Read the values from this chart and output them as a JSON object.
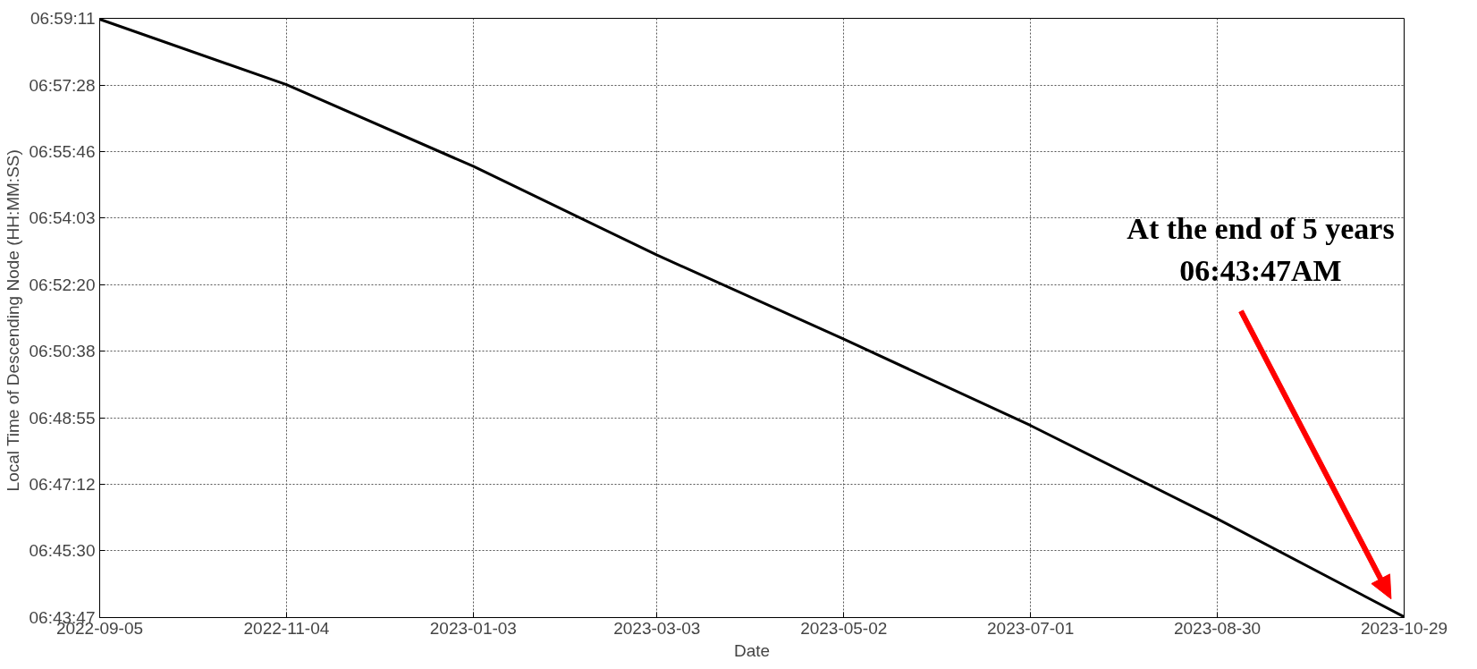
{
  "chart_data": {
    "type": "line",
    "xlabel": "Date",
    "ylabel": "Local Time of Descending Node  (HH:MM:SS)",
    "x": [
      "2022-09-05",
      "2022-11-04",
      "2023-01-03",
      "2023-03-03",
      "2023-05-02",
      "2023-07-01",
      "2023-08-30",
      "2023-10-29"
    ],
    "series": [
      {
        "color": "#000000",
        "values": [
          6.986,
          6.958,
          6.923,
          6.885,
          6.849,
          6.812,
          6.772,
          6.73
        ]
      }
    ],
    "xlim": [
      "2022-09-05",
      "2023-10-29"
    ],
    "xticks": [
      "2022-09-05",
      "2022-11-04",
      "2023-01-03",
      "2023-03-03",
      "2023-05-02",
      "2023-07-01",
      "2023-08-30",
      "2023-10-29"
    ],
    "ylim": [
      6.72972,
      6.98639
    ],
    "yticks": [
      {
        "value": 6.72972,
        "label": "06:43:47"
      },
      {
        "value": 6.75833,
        "label": "06:45:30"
      },
      {
        "value": 6.78667,
        "label": "06:47:12"
      },
      {
        "value": 6.81528,
        "label": "06:48:55"
      },
      {
        "value": 6.84389,
        "label": "06:50:38"
      },
      {
        "value": 6.87222,
        "label": "06:52:20"
      },
      {
        "value": 6.90083,
        "label": "06:54:03"
      },
      {
        "value": 6.92944,
        "label": "06:55:46"
      },
      {
        "value": 6.95778,
        "label": "06:57:28"
      },
      {
        "value": 6.98639,
        "label": "06:59:11"
      }
    ],
    "grid": true,
    "line_style": "solid",
    "marker": "none",
    "annotations": [
      "At the end of 5 years\n06:43:47AM"
    ]
  }
}
